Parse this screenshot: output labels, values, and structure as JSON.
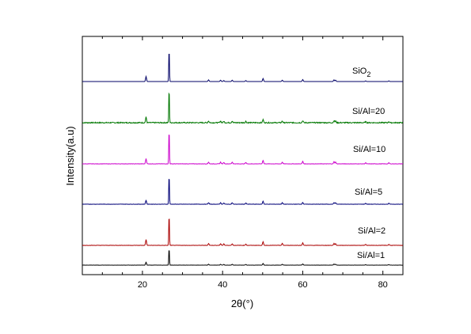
{
  "chart_data": {
    "type": "line",
    "xlabel": "2θ(°)",
    "ylabel": "Intensity(a.u)",
    "xlim": [
      5,
      85
    ],
    "x_ticks": [
      20,
      40,
      60,
      80
    ],
    "grid": false,
    "stacked_offset": true,
    "series": [
      {
        "name": "SiO2",
        "label_main": "SiO",
        "label_sub": "2",
        "color": "#000066",
        "baseline": 0,
        "noise": 0.0,
        "peaks": [
          [
            20.9,
            0.15
          ],
          [
            26.65,
            1.0
          ],
          [
            36.5,
            0.05
          ],
          [
            39.5,
            0.04
          ],
          [
            40.3,
            0.03
          ],
          [
            42.4,
            0.04
          ],
          [
            45.8,
            0.03
          ],
          [
            50.1,
            0.09
          ],
          [
            54.9,
            0.04
          ],
          [
            60.0,
            0.06
          ],
          [
            67.8,
            0.05
          ],
          [
            68.2,
            0.04
          ],
          [
            75.7,
            0.02
          ],
          [
            81.5,
            0.02
          ]
        ]
      },
      {
        "name": "Si/Al=20",
        "color": "#007700",
        "baseline": 0,
        "noise": 0.03,
        "peaks": [
          [
            20.9,
            0.16
          ],
          [
            26.65,
            1.0
          ],
          [
            36.5,
            0.05
          ],
          [
            39.5,
            0.05
          ],
          [
            40.3,
            0.04
          ],
          [
            42.4,
            0.05
          ],
          [
            45.8,
            0.04
          ],
          [
            50.1,
            0.09
          ],
          [
            54.9,
            0.05
          ],
          [
            60.0,
            0.06
          ],
          [
            67.8,
            0.06
          ],
          [
            68.2,
            0.05
          ],
          [
            75.7,
            0.03
          ],
          [
            81.5,
            0.03
          ]
        ]
      },
      {
        "name": "Si/Al=10",
        "color": "#cc00cc",
        "baseline": 0,
        "noise": 0.01,
        "peaks": [
          [
            20.9,
            0.15
          ],
          [
            26.65,
            1.0
          ],
          [
            36.5,
            0.05
          ],
          [
            39.5,
            0.05
          ],
          [
            40.3,
            0.04
          ],
          [
            42.4,
            0.05
          ],
          [
            45.8,
            0.04
          ],
          [
            50.1,
            0.1
          ],
          [
            54.9,
            0.05
          ],
          [
            60.0,
            0.07
          ],
          [
            67.8,
            0.06
          ],
          [
            68.2,
            0.05
          ],
          [
            75.7,
            0.03
          ],
          [
            81.5,
            0.03
          ]
        ]
      },
      {
        "name": "Si/Al=5",
        "color": "#000077",
        "baseline": 0,
        "noise": 0.01,
        "peaks": [
          [
            20.9,
            0.13
          ],
          [
            26.65,
            1.0
          ],
          [
            36.5,
            0.05
          ],
          [
            39.5,
            0.05
          ],
          [
            40.3,
            0.04
          ],
          [
            42.4,
            0.05
          ],
          [
            45.8,
            0.04
          ],
          [
            50.1,
            0.1
          ],
          [
            54.9,
            0.05
          ],
          [
            60.0,
            0.06
          ],
          [
            67.8,
            0.05
          ],
          [
            68.2,
            0.05
          ],
          [
            75.7,
            0.03
          ],
          [
            81.5,
            0.03
          ]
        ]
      },
      {
        "name": "Si/Al=2",
        "color": "#aa0000",
        "baseline": 0,
        "noise": 0.01,
        "peaks": [
          [
            20.9,
            0.18
          ],
          [
            26.65,
            1.0
          ],
          [
            36.5,
            0.06
          ],
          [
            39.5,
            0.05
          ],
          [
            40.3,
            0.05
          ],
          [
            42.4,
            0.05
          ],
          [
            45.8,
            0.04
          ],
          [
            50.1,
            0.11
          ],
          [
            54.9,
            0.06
          ],
          [
            60.0,
            0.08
          ],
          [
            67.8,
            0.06
          ],
          [
            68.2,
            0.05
          ],
          [
            75.7,
            0.03
          ],
          [
            81.5,
            0.03
          ]
        ]
      },
      {
        "name": "Si/Al=1",
        "color": "#000000",
        "baseline": 0,
        "noise": 0.01,
        "peaks": [
          [
            20.9,
            0.17
          ],
          [
            26.65,
            1.0
          ],
          [
            36.5,
            0.05
          ],
          [
            39.5,
            0.05
          ],
          [
            40.3,
            0.04
          ],
          [
            42.4,
            0.05
          ],
          [
            45.8,
            0.04
          ],
          [
            50.1,
            0.1
          ],
          [
            54.9,
            0.05
          ],
          [
            60.0,
            0.07
          ],
          [
            67.8,
            0.06
          ],
          [
            68.2,
            0.05
          ],
          [
            75.7,
            0.03
          ],
          [
            81.5,
            0.03
          ]
        ]
      }
    ]
  }
}
